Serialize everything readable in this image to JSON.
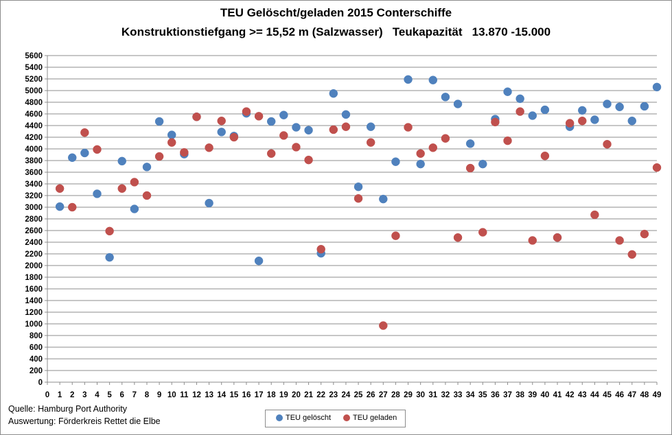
{
  "chart_data": {
    "type": "scatter",
    "title": "TEU Gelöscht/geladen 2015 Conterschiffe",
    "subtitle": "Konstruktionstiefgang >= 15,52 m (Salzwasser)   Teukapazität   13.870 -15.000",
    "xlabel": "",
    "ylabel": "",
    "xlim": [
      0,
      49
    ],
    "ylim": [
      0,
      5600
    ],
    "x_ticks": [
      0,
      1,
      2,
      3,
      4,
      5,
      6,
      7,
      8,
      9,
      10,
      11,
      12,
      13,
      14,
      15,
      16,
      17,
      18,
      19,
      20,
      21,
      22,
      23,
      24,
      25,
      26,
      27,
      28,
      29,
      30,
      31,
      32,
      33,
      34,
      35,
      36,
      37,
      38,
      39,
      40,
      41,
      42,
      43,
      44,
      45,
      46,
      47,
      48,
      49
    ],
    "y_ticks": [
      0,
      200,
      400,
      600,
      800,
      1000,
      1200,
      1400,
      1600,
      1800,
      2000,
      2200,
      2400,
      2600,
      2800,
      3000,
      3200,
      3400,
      3600,
      3800,
      4000,
      4200,
      4400,
      4600,
      4800,
      5000,
      5200,
      5400,
      5600
    ],
    "grid": "horizontal",
    "legend_position": "bottom",
    "series": [
      {
        "name": "TEU gelöscht",
        "color": "#4f81bd",
        "x": [
          1,
          2,
          3,
          4,
          5,
          6,
          7,
          8,
          9,
          10,
          11,
          12,
          13,
          14,
          15,
          16,
          17,
          18,
          19,
          20,
          21,
          22,
          23,
          24,
          25,
          26,
          27,
          28,
          29,
          30,
          31,
          32,
          33,
          34,
          35,
          36,
          37,
          38,
          39,
          40,
          41,
          42,
          43,
          44,
          45,
          46,
          47,
          48,
          49
        ],
        "values": [
          3010,
          3850,
          3930,
          3230,
          2140,
          3790,
          2970,
          3690,
          4470,
          4240,
          3910,
          4550,
          3070,
          4290,
          4220,
          4610,
          2080,
          4470,
          4580,
          4370,
          4320,
          2210,
          4950,
          4590,
          3350,
          4380,
          3140,
          3780,
          5190,
          3740,
          5180,
          4890,
          4770,
          4090,
          3740,
          4510,
          4980,
          4860,
          4570,
          4670,
          2480,
          4380,
          4660,
          4500,
          4770,
          4720,
          4480,
          4730,
          5060
        ]
      },
      {
        "name": "TEU geladen",
        "color": "#c0504d",
        "x": [
          1,
          2,
          3,
          4,
          5,
          6,
          7,
          8,
          9,
          10,
          11,
          12,
          13,
          14,
          15,
          16,
          17,
          18,
          19,
          20,
          21,
          22,
          23,
          24,
          25,
          26,
          27,
          28,
          29,
          30,
          31,
          32,
          33,
          34,
          35,
          36,
          37,
          38,
          39,
          40,
          41,
          42,
          43,
          44,
          45,
          46,
          47,
          48,
          49
        ],
        "values": [
          3320,
          3000,
          4280,
          3990,
          2590,
          3320,
          3430,
          3200,
          3870,
          4110,
          3940,
          4550,
          4020,
          4480,
          4200,
          4640,
          4560,
          3920,
          4230,
          4030,
          3810,
          2280,
          4330,
          4380,
          3150,
          4110,
          970,
          2510,
          4370,
          3920,
          4020,
          4180,
          2480,
          3670,
          2570,
          4460,
          4140,
          4640,
          2430,
          3880,
          2480,
          4440,
          4480,
          2870,
          4080,
          2430,
          2190,
          2540,
          3680
        ]
      }
    ]
  },
  "footnotes": {
    "source": "Quelle: Hamburg Port Authority",
    "analysis": "Auswertung: Förderkreis Rettet die Elbe"
  }
}
